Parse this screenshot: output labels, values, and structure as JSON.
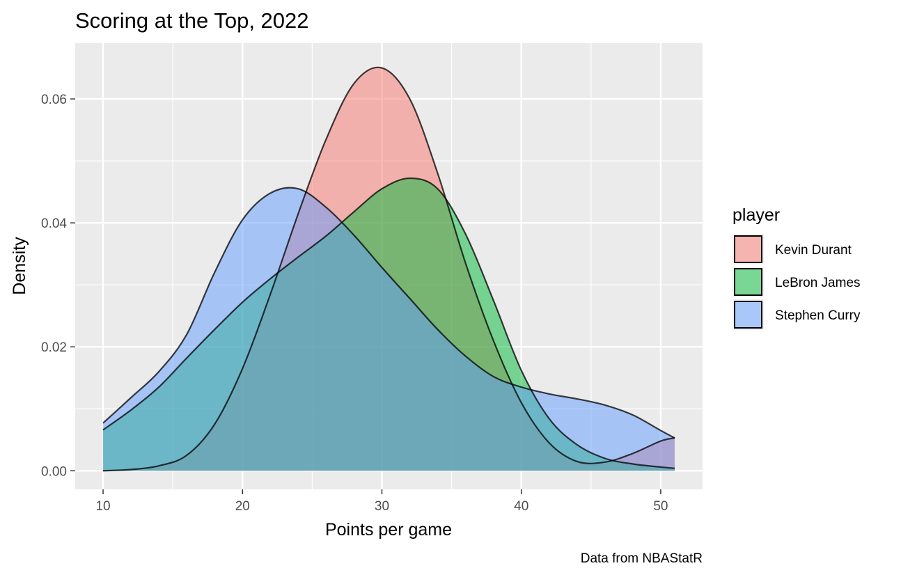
{
  "chart_data": {
    "type": "area",
    "title": "Scoring at the Top, 2022",
    "xlabel": "Points per game",
    "ylabel": "Density",
    "caption": "Data from NBAStatR",
    "xlim": [
      8,
      53
    ],
    "ylim": [
      -0.003,
      0.069
    ],
    "xticks": [
      10,
      20,
      30,
      40,
      50
    ],
    "xtick_labels": [
      "10",
      "20",
      "30",
      "40",
      "50"
    ],
    "yticks": [
      0,
      0.02,
      0.04,
      0.06
    ],
    "ytick_labels": [
      "0.00",
      "0.02",
      "0.04",
      "0.06"
    ],
    "grid": true,
    "legend": {
      "title": "player",
      "position": "right"
    },
    "x": [
      10,
      12,
      14,
      16,
      18,
      20,
      22,
      24,
      26,
      28,
      30,
      32,
      34,
      36,
      38,
      40,
      42,
      44,
      46,
      48,
      50,
      51
    ],
    "series": [
      {
        "name": "Kevin Durant",
        "color": "#F8766D",
        "values": [
          0.0,
          0.0002,
          0.0008,
          0.0025,
          0.0075,
          0.0165,
          0.0285,
          0.0415,
          0.0535,
          0.0625,
          0.065,
          0.06,
          0.048,
          0.0335,
          0.021,
          0.011,
          0.0045,
          0.0015,
          0.0014,
          0.0028,
          0.0048,
          0.0053
        ]
      },
      {
        "name": "LeBron James",
        "color": "#00BA38",
        "values": [
          0.0066,
          0.0098,
          0.0135,
          0.0182,
          0.0228,
          0.0272,
          0.031,
          0.0345,
          0.0379,
          0.0418,
          0.0455,
          0.0472,
          0.0455,
          0.0382,
          0.0275,
          0.0162,
          0.0084,
          0.0042,
          0.002,
          0.0011,
          0.0006,
          0.0004
        ]
      },
      {
        "name": "Stephen Curry",
        "color": "#619CFF",
        "values": [
          0.0077,
          0.0118,
          0.016,
          0.022,
          0.032,
          0.0405,
          0.0448,
          0.0455,
          0.0425,
          0.038,
          0.0328,
          0.0278,
          0.0228,
          0.0185,
          0.0152,
          0.0135,
          0.0124,
          0.0116,
          0.0106,
          0.009,
          0.0065,
          0.0053
        ]
      }
    ]
  }
}
